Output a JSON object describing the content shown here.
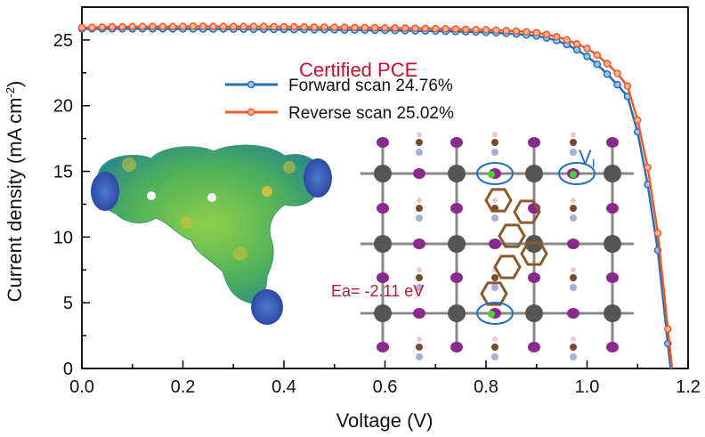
{
  "chart_data": {
    "type": "line",
    "title": "",
    "xlabel": "Voltage (V)",
    "ylabel": "Current density (mA cm",
    "ylabel_sup": "-2",
    "ylabel_close": ")",
    "xlim": [
      0,
      1.2
    ],
    "ylim": [
      0,
      27.5
    ],
    "xticks": [
      0.0,
      0.2,
      0.4,
      0.6,
      0.8,
      1.0,
      1.2
    ],
    "xtick_labels": [
      "0.0",
      "0.2",
      "0.4",
      "0.6",
      "0.8",
      "1.0",
      "1.2"
    ],
    "yticks": [
      0,
      5,
      10,
      15,
      20,
      25
    ],
    "ytick_labels": [
      "0",
      "5",
      "10",
      "15",
      "20",
      "25"
    ],
    "grid": false,
    "legend_title": "Certified PCE",
    "legend_placement": "top-center",
    "series": [
      {
        "name": "Forward scan 24.76%",
        "color": "#1f6fc0",
        "x": [
          0,
          0.02,
          0.04,
          0.06,
          0.08,
          0.1,
          0.12,
          0.14,
          0.16,
          0.18,
          0.2,
          0.22,
          0.24,
          0.26,
          0.28,
          0.3,
          0.32,
          0.34,
          0.36,
          0.38,
          0.4,
          0.42,
          0.44,
          0.46,
          0.48,
          0.5,
          0.52,
          0.54,
          0.56,
          0.58,
          0.6,
          0.62,
          0.64,
          0.66,
          0.68,
          0.7,
          0.72,
          0.74,
          0.76,
          0.78,
          0.8,
          0.82,
          0.84,
          0.86,
          0.88,
          0.9,
          0.92,
          0.94,
          0.96,
          0.98,
          1.0,
          1.02,
          1.04,
          1.06,
          1.08,
          1.1,
          1.12,
          1.14,
          1.16
        ],
        "y": [
          25.85,
          25.85,
          25.85,
          25.85,
          25.85,
          25.85,
          25.85,
          25.85,
          25.85,
          25.84,
          25.84,
          25.84,
          25.83,
          25.83,
          25.83,
          25.82,
          25.82,
          25.81,
          25.81,
          25.8,
          25.8,
          25.79,
          25.79,
          25.78,
          25.78,
          25.77,
          25.76,
          25.76,
          25.75,
          25.74,
          25.73,
          25.72,
          25.71,
          25.7,
          25.69,
          25.68,
          25.66,
          25.65,
          25.63,
          25.6,
          25.58,
          25.55,
          25.5,
          25.45,
          25.38,
          25.3,
          25.15,
          24.95,
          24.65,
          24.25,
          23.75,
          23.15,
          22.4,
          21.6,
          20.7,
          18.0,
          14.0,
          9.0,
          1.9
        ]
      },
      {
        "name": "Reverse scan 25.02%",
        "color": "#f05a28",
        "x": [
          0,
          0.02,
          0.04,
          0.06,
          0.08,
          0.1,
          0.12,
          0.14,
          0.16,
          0.18,
          0.2,
          0.22,
          0.24,
          0.26,
          0.28,
          0.3,
          0.32,
          0.34,
          0.36,
          0.38,
          0.4,
          0.42,
          0.44,
          0.46,
          0.48,
          0.5,
          0.52,
          0.54,
          0.56,
          0.58,
          0.6,
          0.62,
          0.64,
          0.66,
          0.68,
          0.7,
          0.72,
          0.74,
          0.76,
          0.78,
          0.8,
          0.82,
          0.84,
          0.86,
          0.88,
          0.9,
          0.92,
          0.94,
          0.96,
          0.98,
          1.0,
          1.02,
          1.04,
          1.06,
          1.08,
          1.1,
          1.12,
          1.14,
          1.16
        ],
        "y": [
          25.95,
          25.96,
          25.98,
          26.0,
          26.0,
          26.02,
          26.02,
          26.03,
          26.02,
          26.02,
          26.03,
          26.04,
          26.04,
          26.03,
          26.03,
          26.02,
          26.02,
          26.03,
          26.02,
          26.01,
          26.0,
          26.0,
          25.99,
          25.98,
          25.98,
          25.97,
          25.96,
          25.95,
          25.94,
          25.93,
          25.92,
          25.91,
          25.9,
          25.89,
          25.88,
          25.86,
          25.85,
          25.83,
          25.81,
          25.79,
          25.77,
          25.74,
          25.71,
          25.67,
          25.62,
          25.55,
          25.42,
          25.25,
          25.0,
          24.7,
          24.35,
          23.85,
          23.2,
          22.45,
          21.5,
          18.9,
          15.3,
          10.3,
          3.0
        ]
      }
    ],
    "annotations": {
      "vacancy_label": "V",
      "vacancy_sub": "I",
      "activation_energy": "Ea= -2.11 eV"
    }
  }
}
